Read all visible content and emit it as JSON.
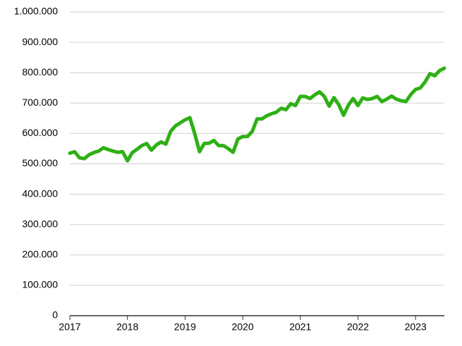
{
  "chart_data": {
    "type": "line",
    "x": [
      2017,
      2017.0833,
      2017.1667,
      2017.25,
      2017.3333,
      2017.4167,
      2017.5,
      2017.5833,
      2017.6667,
      2017.75,
      2017.8333,
      2017.9167,
      2018,
      2018.0833,
      2018.1667,
      2018.25,
      2018.3333,
      2018.4167,
      2018.5,
      2018.5833,
      2018.6667,
      2018.75,
      2018.8333,
      2018.9167,
      2019,
      2019.0833,
      2019.1667,
      2019.25,
      2019.3333,
      2019.4167,
      2019.5,
      2019.5833,
      2019.6667,
      2019.75,
      2019.8333,
      2019.9167,
      2020,
      2020.0833,
      2020.1667,
      2020.25,
      2020.3333,
      2020.4167,
      2020.5,
      2020.5833,
      2020.6667,
      2020.75,
      2020.8333,
      2020.9167,
      2021,
      2021.0833,
      2021.1667,
      2021.25,
      2021.3333,
      2021.4167,
      2021.5,
      2021.5833,
      2021.6667,
      2021.75,
      2021.8333,
      2021.9167,
      2022,
      2022.0833,
      2022.1667,
      2022.25,
      2022.3333,
      2022.4167,
      2022.5,
      2022.5833,
      2022.6667,
      2022.75,
      2022.8333,
      2022.9167,
      2023,
      2023.0833,
      2023.1667,
      2023.25,
      2023.3333,
      2023.4167,
      2023.5
    ],
    "series": [
      {
        "color": "#2eb014",
        "values": [
          535000,
          540000,
          520000,
          517000,
          530000,
          537000,
          542000,
          553000,
          547000,
          542000,
          538000,
          540000,
          510000,
          537000,
          548000,
          560000,
          567000,
          545000,
          562000,
          572000,
          565000,
          607000,
          625000,
          635000,
          645000,
          652000,
          600000,
          540000,
          567000,
          568000,
          577000,
          560000,
          560000,
          550000,
          538000,
          582000,
          590000,
          590000,
          607000,
          648000,
          648000,
          658000,
          665000,
          670000,
          683000,
          678000,
          698000,
          692000,
          722000,
          722000,
          715000,
          727000,
          737000,
          722000,
          690000,
          718000,
          695000,
          660000,
          693000,
          715000,
          692000,
          717000,
          712000,
          715000,
          722000,
          705000,
          713000,
          723000,
          713000,
          708000,
          705000,
          728000,
          745000,
          750000,
          770000,
          797000,
          790000,
          807000,
          815000
        ]
      }
    ],
    "xlim": [
      2017,
      2023.5
    ],
    "xticks": [
      2017,
      2018,
      2019,
      2020,
      2021,
      2022,
      2023
    ],
    "ylim": [
      0,
      1000000
    ],
    "yticks": [
      0,
      {
        "value": 100000,
        "label": "100.000"
      },
      {
        "value": 200000,
        "label": "200.000"
      },
      {
        "value": 300000,
        "label": "300.000"
      },
      {
        "value": 400000,
        "label": "400.000"
      },
      {
        "value": 500000,
        "label": "500.000"
      },
      {
        "value": 600000,
        "label": "600.000"
      },
      {
        "value": 700000,
        "label": "700.000"
      },
      {
        "value": 800000,
        "label": "800.000"
      },
      {
        "value": 900000,
        "label": "900.000"
      },
      {
        "value": 1000000,
        "label": "1.000.000"
      }
    ],
    "grid": true
  }
}
